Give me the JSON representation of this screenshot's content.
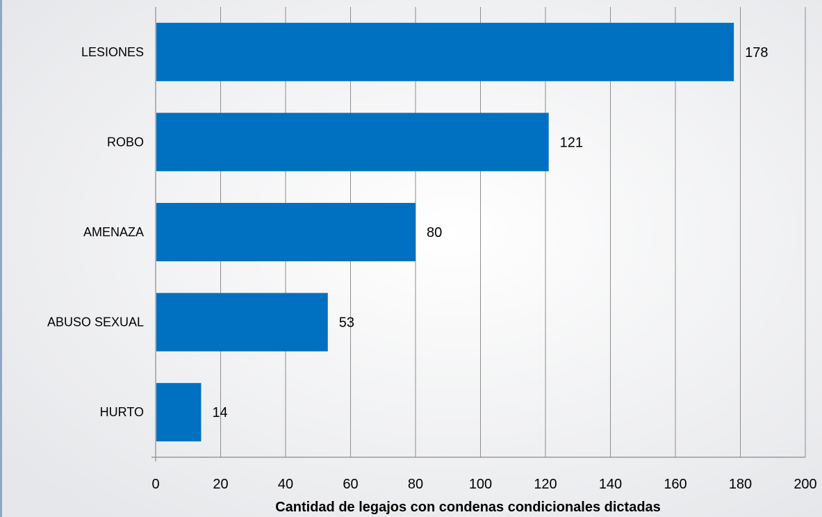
{
  "chart_data": {
    "type": "bar",
    "orientation": "horizontal",
    "categories": [
      "LESIONES",
      "ROBO",
      "AMENAZA",
      "ABUSO SEXUAL",
      "HURTO"
    ],
    "values": [
      178,
      121,
      80,
      53,
      14
    ],
    "xlabel": "Cantidad de legajos con condenas condicionales dictadas",
    "xlim": [
      0,
      200
    ],
    "xticks": [
      0,
      20,
      40,
      60,
      80,
      100,
      120,
      140,
      160,
      180,
      200
    ],
    "grid": "vertical",
    "bar_color": "#0070c0"
  }
}
